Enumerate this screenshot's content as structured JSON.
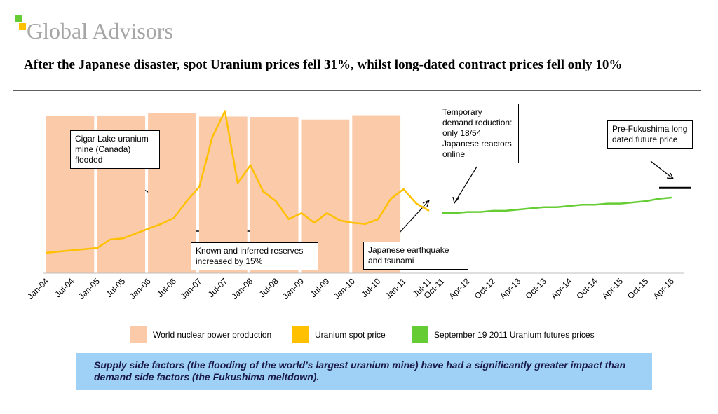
{
  "header": {
    "logo": "Global Advisors",
    "title": "After the Japanese disaster, spot Uranium prices fell 31%, whilst long-dated contract prices fell only 10%"
  },
  "chart_data": {
    "type": "line",
    "categories": [
      "Jan-04",
      null,
      "Jul-04",
      null,
      "Jan-05",
      null,
      "Jul-05",
      null,
      "Jan-06",
      null,
      "Jul-06",
      null,
      "Jan-07",
      null,
      "Jul-07",
      null,
      "Jan-08",
      null,
      "Jul-08",
      null,
      "Jan-09",
      null,
      "Jul-09",
      null,
      "Jan-10",
      null,
      "Jul-10",
      null,
      "Jan-11",
      null,
      "Jul-11",
      "Oct-11",
      null,
      "Apr-12",
      null,
      "Oct-12",
      null,
      "Apr-13",
      null,
      "Oct-13",
      null,
      "Apr-14",
      null,
      "Oct-14",
      null,
      "Apr-15",
      null,
      "Oct-15",
      null,
      "Apr-16"
    ],
    "ylim": [
      0,
      140
    ],
    "y2lim": [
      0,
      2800
    ],
    "series": [
      {
        "name": "World nuclear power production",
        "type": "bar",
        "axis": "y2",
        "color": "#fbcaa9",
        "values": [
          2619,
          null,
          null,
          null,
          2626,
          null,
          null,
          null,
          2660,
          null,
          null,
          null,
          2608,
          null,
          null,
          null,
          2601,
          null,
          null,
          null,
          2558,
          null,
          null,
          null,
          2630,
          null,
          null,
          null,
          null,
          null,
          null,
          null,
          null,
          null,
          null,
          null,
          null,
          null,
          null,
          null,
          null,
          null,
          null,
          null,
          null,
          null,
          null,
          null,
          null,
          null
        ]
      },
      {
        "name": "Uranium spot price",
        "type": "line",
        "color": "#ffc000",
        "values": [
          17,
          18,
          19,
          20,
          21,
          28,
          29,
          33,
          37,
          41,
          46,
          60,
          72,
          113,
          135,
          75,
          90,
          68,
          60,
          45,
          50,
          42,
          50,
          44,
          42,
          41,
          45,
          62,
          70,
          58,
          52,
          null,
          null,
          null,
          null,
          null,
          null,
          null,
          null,
          null,
          null,
          null,
          null,
          null,
          null,
          null,
          null,
          null,
          null,
          null
        ]
      },
      {
        "name": "September 19 2011 Uranium futures prices",
        "type": "line",
        "color": "#66cc33",
        "values": [
          null,
          null,
          null,
          null,
          null,
          null,
          null,
          null,
          null,
          null,
          null,
          null,
          null,
          null,
          null,
          null,
          null,
          null,
          null,
          null,
          null,
          null,
          null,
          null,
          null,
          null,
          null,
          null,
          null,
          null,
          null,
          50,
          50,
          51,
          51,
          52,
          52,
          53,
          54,
          55,
          55,
          56,
          57,
          57,
          58,
          58,
          59,
          60,
          62,
          63
        ]
      }
    ],
    "reference_level": 71,
    "annotations": [
      "Cigar Lake uranium mine (Canada) flooded",
      "Known and inferred reserves increased by 15%",
      "Temporary demand reduction: only 18/54 Japanese reactors online",
      "Japanese earthquake and tsunami",
      "Pre-Fukushima long dated future price"
    ]
  },
  "footer": "Supply side factors (the flooding of the world’s largest uranium mine) have had a significantly greater impact than demand side factors (the Fukushima meltdown)."
}
